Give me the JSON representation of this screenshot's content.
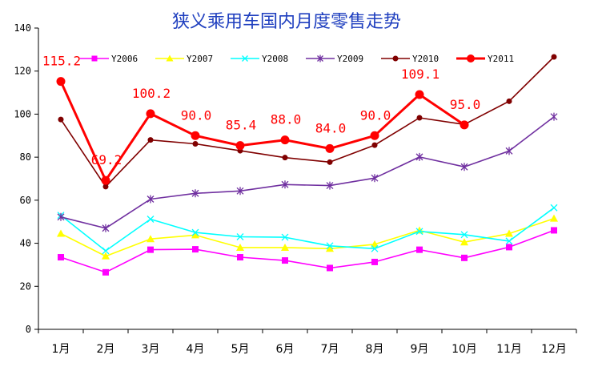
{
  "chart_data": {
    "type": "line",
    "title": "狭义乘用车国内月度零售走势",
    "xlabel": "",
    "ylabel": "",
    "ylim": [
      0,
      140
    ],
    "yticks": [
      0,
      20,
      40,
      60,
      80,
      100,
      120,
      140
    ],
    "grid": false,
    "legend": "top",
    "categories": [
      "1月",
      "2月",
      "3月",
      "4月",
      "5月",
      "6月",
      "7月",
      "8月",
      "9月",
      "10月",
      "11月",
      "12月"
    ],
    "series": [
      {
        "name": "Y2006",
        "color": "#ff00ff",
        "marker": "square",
        "values": [
          33.5,
          26.5,
          37,
          37.2,
          33.5,
          32,
          28.5,
          31.3,
          37,
          33.2,
          38.2,
          46
        ]
      },
      {
        "name": "Y2007",
        "color": "#ffff00",
        "marker": "triangle",
        "values": [
          44.5,
          34,
          42,
          43.8,
          38,
          38,
          37.5,
          39.5,
          46,
          40.5,
          44.5,
          51.5
        ]
      },
      {
        "name": "Y2008",
        "color": "#00ffff",
        "marker": "x",
        "values": [
          53,
          36.5,
          51.2,
          45,
          43,
          42.8,
          38.8,
          37.5,
          45.5,
          44,
          41,
          56.5
        ]
      },
      {
        "name": "Y2009",
        "color": "#7030a0",
        "marker": "star",
        "values": [
          52.2,
          47,
          60.5,
          63.2,
          64.3,
          67.3,
          66.8,
          70.3,
          80.1,
          75.5,
          82.9,
          98.8
        ]
      },
      {
        "name": "Y2010",
        "color": "#800000",
        "marker": "circle",
        "values": [
          97.5,
          66.3,
          88,
          86.2,
          83,
          79.8,
          77.7,
          85.6,
          98.3,
          95.2,
          106,
          126.6
        ]
      },
      {
        "name": "Y2011",
        "color": "#ff0000",
        "marker": "circle",
        "values": [
          115.2,
          69.2,
          100.2,
          90.0,
          85.4,
          88.0,
          84.0,
          90.0,
          109.1,
          95.0,
          null,
          null
        ]
      }
    ],
    "data_labels": [
      "115.2",
      "69.2",
      "100.2",
      "90.0",
      "85.4",
      "88.0",
      "84.0",
      "90.0",
      "109.1",
      "95.0"
    ]
  }
}
